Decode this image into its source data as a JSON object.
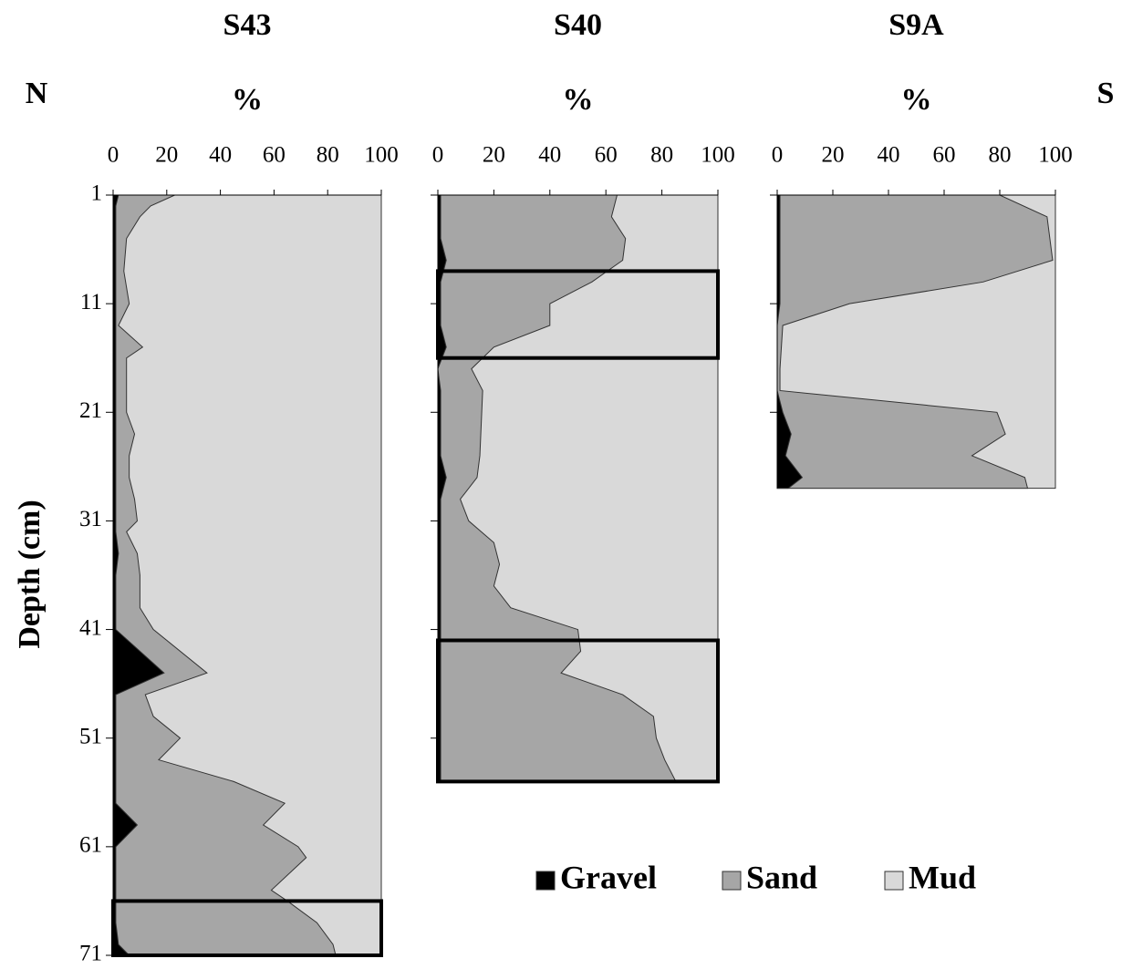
{
  "direction_left": "N",
  "direction_right": "S",
  "chart_data": [
    {
      "type": "area",
      "orientation": "horizontal",
      "title": "S43",
      "xlabel": "%",
      "ylabel": "Depth (cm)",
      "xlim": [
        0,
        100
      ],
      "xticks": [
        0,
        20,
        40,
        60,
        80,
        100
      ],
      "ylim": [
        1,
        71
      ],
      "yticks": [
        1,
        11,
        21,
        31,
        41,
        51,
        61,
        71
      ],
      "x": [
        1,
        2,
        3,
        5,
        8,
        11,
        13,
        15,
        16,
        18,
        21,
        23,
        25,
        27,
        29,
        31,
        32,
        34,
        36,
        39,
        41,
        45,
        47,
        49,
        51,
        53,
        55,
        57,
        59,
        61,
        62,
        65,
        66,
        68,
        70,
        71
      ],
      "series": [
        {
          "name": "Gravel",
          "color": "#000000",
          "values": [
            2,
            1,
            1,
            1,
            1,
            1,
            1,
            1,
            1,
            1,
            1,
            1,
            1,
            1,
            1,
            1,
            1,
            2,
            1,
            1,
            1,
            19,
            1,
            1,
            1,
            1,
            1,
            1,
            9,
            1,
            1,
            1,
            1,
            1,
            2,
            6
          ]
        },
        {
          "name": "Sand",
          "color": "#a6a6a6",
          "values": [
            21,
            13,
            9,
            4,
            3,
            5,
            1,
            10,
            4,
            4,
            4,
            7,
            5,
            5,
            7,
            8,
            4,
            7,
            9,
            9,
            14,
            16,
            11,
            14,
            24,
            16,
            44,
            63,
            47,
            68,
            71,
            58,
            64,
            75,
            80,
            77
          ]
        },
        {
          "name": "Mud",
          "color": "#d9d9d9",
          "values": [
            77,
            86,
            90,
            95,
            96,
            94,
            98,
            89,
            95,
            95,
            95,
            92,
            94,
            94,
            92,
            91,
            95,
            91,
            90,
            90,
            85,
            65,
            88,
            85,
            75,
            83,
            55,
            36,
            44,
            31,
            28,
            41,
            35,
            24,
            18,
            17
          ]
        }
      ],
      "highlights": [
        [
          66,
          71
        ]
      ]
    },
    {
      "type": "area",
      "orientation": "horizontal",
      "title": "S40",
      "xlabel": "%",
      "xlim": [
        0,
        100
      ],
      "xticks": [
        0,
        20,
        40,
        60,
        80,
        100
      ],
      "ylim": [
        1,
        55
      ],
      "yticks": [
        1,
        11,
        21,
        31,
        41,
        51
      ],
      "x": [
        1,
        3,
        5,
        7,
        9,
        11,
        13,
        15,
        17,
        19,
        25,
        27,
        29,
        31,
        33,
        35,
        37,
        39,
        41,
        43,
        45,
        47,
        49,
        51,
        53,
        55
      ],
      "series": [
        {
          "name": "Gravel",
          "color": "#000000",
          "values": [
            1,
            1,
            1,
            3,
            1,
            1,
            1,
            3,
            0,
            1,
            1,
            3,
            1,
            1,
            1,
            1,
            1,
            1,
            1,
            1,
            1,
            1,
            1,
            1,
            1,
            1
          ]
        },
        {
          "name": "Sand",
          "color": "#a6a6a6",
          "values": [
            63,
            61,
            66,
            63,
            54,
            39,
            39,
            17,
            12,
            15,
            14,
            11,
            7,
            10,
            19,
            21,
            19,
            25,
            49,
            50,
            43,
            65,
            76,
            77,
            80,
            84
          ]
        },
        {
          "name": "Mud",
          "color": "#d9d9d9",
          "values": [
            36,
            38,
            33,
            34,
            45,
            60,
            60,
            80,
            88,
            84,
            85,
            86,
            92,
            89,
            80,
            78,
            80,
            74,
            50,
            49,
            56,
            34,
            23,
            22,
            19,
            15
          ]
        }
      ],
      "highlights": [
        [
          8,
          16
        ],
        [
          42,
          55
        ]
      ]
    },
    {
      "type": "area",
      "orientation": "horizontal",
      "title": "S9A",
      "xlabel": "%",
      "xlim": [
        0,
        100
      ],
      "xticks": [
        0,
        20,
        40,
        60,
        80,
        100
      ],
      "ylim": [
        1,
        28
      ],
      "yticks": [
        1,
        11,
        21
      ],
      "x": [
        1,
        3,
        7,
        9,
        11,
        13,
        17,
        19,
        21,
        23,
        25,
        27,
        28
      ],
      "series": [
        {
          "name": "Gravel",
          "color": "#000000",
          "values": [
            1,
            1,
            1,
            1,
            1,
            0,
            0,
            0,
            2,
            5,
            3,
            9,
            4
          ]
        },
        {
          "name": "Sand",
          "color": "#a6a6a6",
          "values": [
            79,
            96,
            98,
            73,
            25,
            2,
            1,
            1,
            77,
            77,
            67,
            80,
            86
          ]
        },
        {
          "name": "Mud",
          "color": "#d9d9d9",
          "values": [
            20,
            3,
            1,
            26,
            74,
            98,
            99,
            99,
            21,
            18,
            30,
            11,
            10
          ]
        }
      ],
      "highlights": []
    }
  ]
}
